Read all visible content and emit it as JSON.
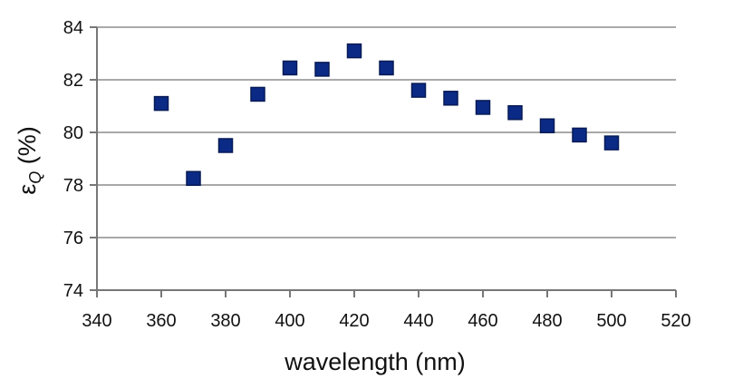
{
  "chart_data": {
    "type": "scatter",
    "title": "",
    "xlabel": "wavelength (nm)",
    "ylabel": {
      "main": "ε",
      "subscript": "Q",
      "suffix": " (%)"
    },
    "xlim": [
      340,
      520
    ],
    "ylim": [
      74,
      84
    ],
    "x_ticks": [
      340,
      360,
      380,
      400,
      420,
      440,
      460,
      480,
      500,
      520
    ],
    "y_ticks": [
      74,
      76,
      78,
      80,
      82,
      84
    ],
    "grid": "horizontal",
    "legend": "none",
    "marker": "square",
    "colors": {
      "marker_fill": "#0b2a86",
      "marker_stroke": "#061a55",
      "grid": "#a9a9a9",
      "axis": "#777777"
    },
    "points": [
      {
        "x": 360,
        "y": 81.1
      },
      {
        "x": 370,
        "y": 78.25
      },
      {
        "x": 380,
        "y": 79.5
      },
      {
        "x": 390,
        "y": 81.45
      },
      {
        "x": 400,
        "y": 82.45
      },
      {
        "x": 410,
        "y": 82.4
      },
      {
        "x": 420,
        "y": 83.1
      },
      {
        "x": 430,
        "y": 82.45
      },
      {
        "x": 440,
        "y": 81.6
      },
      {
        "x": 450,
        "y": 81.3
      },
      {
        "x": 460,
        "y": 80.95
      },
      {
        "x": 470,
        "y": 80.75
      },
      {
        "x": 480,
        "y": 80.25
      },
      {
        "x": 490,
        "y": 79.9
      },
      {
        "x": 500,
        "y": 79.6
      }
    ]
  }
}
